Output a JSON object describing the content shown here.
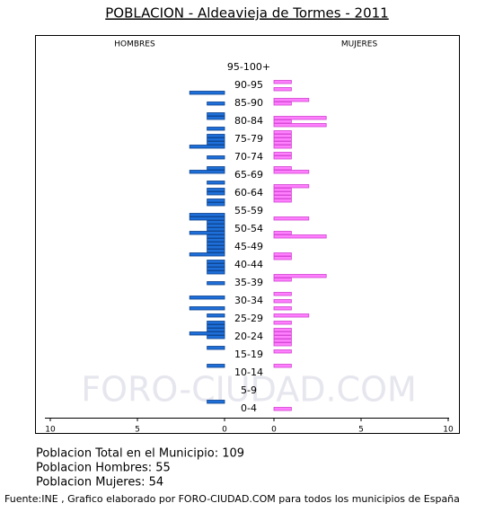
{
  "chart_data": {
    "type": "pyramid",
    "title": "POBLACION - Aldeavieja de Tormes - 2011",
    "categories": [
      "0-4",
      "5-9",
      "10-14",
      "15-19",
      "20-24",
      "25-29",
      "30-34",
      "35-39",
      "40-44",
      "45-49",
      "50-54",
      "55-59",
      "60-64",
      "65-69",
      "70-74",
      "75-79",
      "80-84",
      "85-90",
      "90-95",
      "95-100+"
    ],
    "series": [
      {
        "name": "HOMBRES",
        "color": "#1e6fd9",
        "values": [
          [
            0,
            0,
            0,
            0,
            1
          ],
          [
            0,
            0,
            0,
            0,
            0
          ],
          [
            0,
            0,
            0,
            0,
            1
          ],
          [
            0,
            0,
            0,
            0,
            1
          ],
          [
            0,
            0,
            1,
            2,
            1
          ],
          [
            1,
            1,
            0,
            1,
            0
          ],
          [
            2,
            0,
            0,
            2,
            0
          ],
          [
            0,
            0,
            1,
            0,
            0
          ],
          [
            1,
            1,
            1,
            1,
            0
          ],
          [
            2,
            1,
            1,
            1,
            1
          ],
          [
            1,
            2,
            1,
            1,
            1
          ],
          [
            2,
            2,
            0,
            0,
            1
          ],
          [
            1,
            0,
            1,
            1,
            0
          ],
          [
            1,
            0,
            0,
            2,
            1
          ],
          [
            0,
            0,
            1,
            0,
            0
          ],
          [
            2,
            1,
            1,
            1,
            0
          ],
          [
            1,
            0,
            0,
            1,
            1
          ],
          [
            0,
            0,
            1,
            0,
            0
          ],
          [
            2,
            0,
            0,
            0,
            0
          ],
          [
            0,
            0,
            0,
            0,
            0
          ]
        ]
      },
      {
        "name": "MUJERES",
        "color": "#ff80ff",
        "values": [
          [
            0,
            0,
            1,
            0,
            0
          ],
          [
            0,
            0,
            0,
            0,
            0
          ],
          [
            0,
            0,
            0,
            0,
            1
          ],
          [
            0,
            0,
            0,
            1,
            0
          ],
          [
            1,
            1,
            1,
            1,
            1
          ],
          [
            0,
            1,
            0,
            2,
            0
          ],
          [
            1,
            0,
            1,
            0,
            1
          ],
          [
            0,
            0,
            0,
            1,
            3
          ],
          [
            0,
            0,
            0,
            0,
            1
          ],
          [
            1,
            0,
            0,
            0,
            0
          ],
          [
            3,
            1,
            0,
            0,
            0
          ],
          [
            2,
            0,
            0,
            0,
            0
          ],
          [
            1,
            1,
            1,
            1,
            2
          ],
          [
            0,
            0,
            0,
            2,
            1
          ],
          [
            0,
            0,
            1,
            1,
            0
          ],
          [
            1,
            1,
            1,
            1,
            1
          ],
          [
            0,
            3,
            1,
            3,
            0
          ],
          [
            0,
            0,
            1,
            2,
            0
          ],
          [
            0,
            1,
            0,
            1,
            0
          ],
          [
            0,
            0,
            0,
            0,
            0
          ]
        ]
      }
    ],
    "xlim": [
      0,
      10
    ],
    "xticks": [
      0,
      5,
      10
    ],
    "watermark": "FORO-CIUDAD.COM",
    "notes": [
      "Poblacion Total en el Municipio: 109",
      "Poblacion Hombres: 55",
      "Poblacion Mujeres: 54"
    ],
    "source": "Fuente:INE , Grafico elaborado por FORO-CIUDAD.COM para todos los municipios de España"
  }
}
